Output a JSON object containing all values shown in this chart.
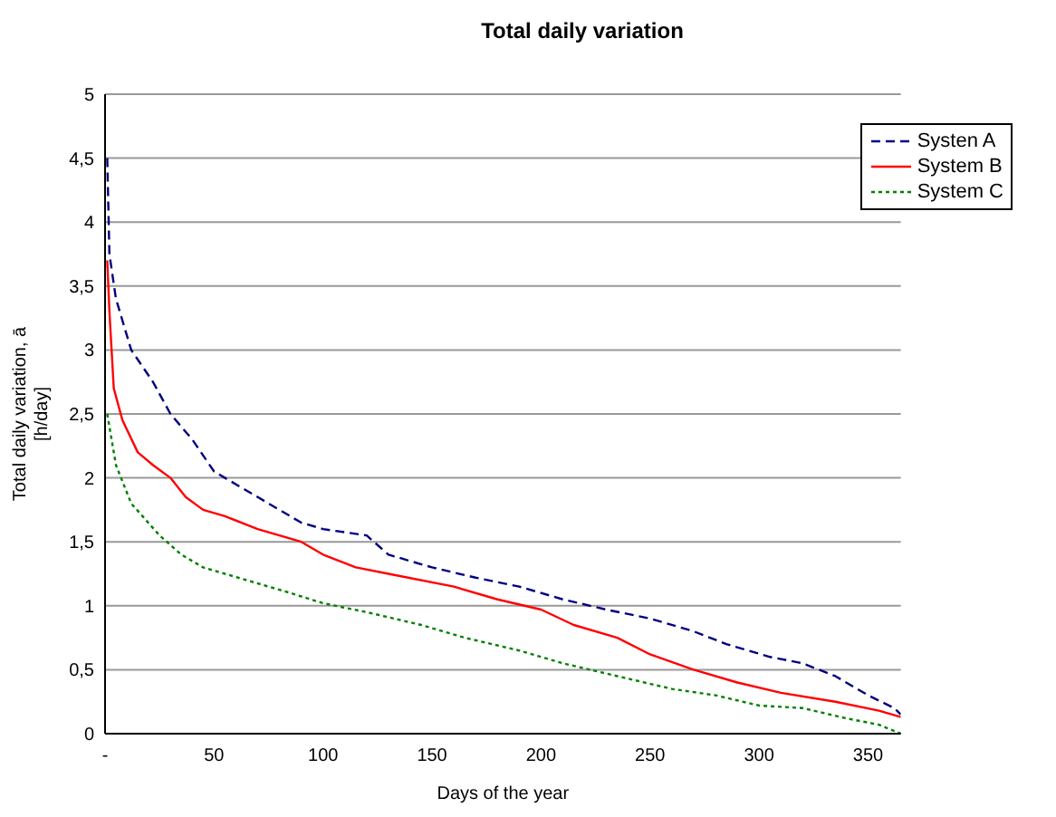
{
  "chart_data": {
    "type": "line",
    "title": "Total daily variation",
    "xlabel": "Days of the year",
    "ylabel": "Total daily variation, ā [h/day]",
    "xlim": [
      0,
      365
    ],
    "xticks": [
      {
        "value": 0,
        "label": "-"
      },
      50,
      100,
      150,
      200,
      250,
      300,
      350
    ],
    "ylim": [
      0,
      5
    ],
    "yticks": [
      0,
      {
        "value": 0.5,
        "label": "0,5"
      },
      1,
      {
        "value": 1.5,
        "label": "1,5"
      },
      2,
      {
        "value": 2.5,
        "label": "2,5"
      },
      3,
      {
        "value": 3.5,
        "label": "3,5"
      },
      4,
      {
        "value": 4.5,
        "label": "4,5"
      },
      5
    ],
    "grid": "y",
    "legend": "top right",
    "marker": "none",
    "series": [
      {
        "name": "Systen A",
        "color": "#000080",
        "line_style": "dashed",
        "x": [
          1,
          2,
          5,
          12,
          22,
          30,
          40,
          50,
          65,
          75,
          90,
          100,
          120,
          130,
          150,
          170,
          190,
          210,
          230,
          250,
          270,
          285,
          305,
          320,
          335,
          350,
          362,
          365
        ],
        "values": [
          4.5,
          3.75,
          3.4,
          3.0,
          2.75,
          2.5,
          2.3,
          2.05,
          1.9,
          1.8,
          1.65,
          1.6,
          1.55,
          1.4,
          1.3,
          1.22,
          1.15,
          1.05,
          0.97,
          0.9,
          0.8,
          0.7,
          0.6,
          0.55,
          0.45,
          0.3,
          0.2,
          0.15
        ]
      },
      {
        "name": "System B",
        "color": "#ff0000",
        "line_style": "solid",
        "x": [
          1,
          2,
          4,
          8,
          15,
          22,
          30,
          37,
          45,
          55,
          70,
          90,
          100,
          115,
          130,
          160,
          180,
          200,
          215,
          235,
          250,
          270,
          290,
          310,
          335,
          355,
          365
        ],
        "values": [
          3.7,
          3.3,
          2.7,
          2.45,
          2.2,
          2.1,
          2.0,
          1.85,
          1.75,
          1.7,
          1.6,
          1.5,
          1.4,
          1.3,
          1.25,
          1.15,
          1.05,
          0.97,
          0.85,
          0.75,
          0.62,
          0.5,
          0.4,
          0.32,
          0.25,
          0.18,
          0.13
        ]
      },
      {
        "name": "System C",
        "color": "#008000",
        "line_style": "dotted",
        "x": [
          1,
          5,
          12,
          25,
          35,
          45,
          65,
          85,
          100,
          120,
          145,
          165,
          190,
          210,
          235,
          260,
          280,
          300,
          320,
          340,
          355,
          365
        ],
        "values": [
          2.5,
          2.1,
          1.8,
          1.55,
          1.4,
          1.3,
          1.2,
          1.1,
          1.02,
          0.95,
          0.85,
          0.75,
          0.65,
          0.55,
          0.45,
          0.35,
          0.3,
          0.22,
          0.2,
          0.12,
          0.07,
          0.0
        ]
      }
    ]
  }
}
